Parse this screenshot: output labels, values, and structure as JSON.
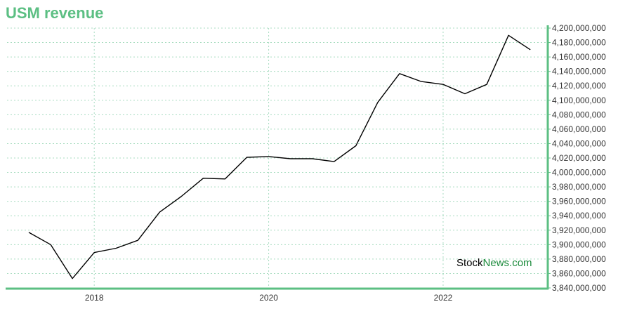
{
  "colors": {
    "title": "#5cbf83",
    "axis": "#5cbf83",
    "grid": "#a8dcc0",
    "line": "#000000",
    "tick_text": "#333333",
    "watermark_stock": "#000000",
    "watermark_news": "#1a8a3a"
  },
  "watermark": {
    "part1": "Stock",
    "part2": "News",
    "part3": ".com"
  },
  "chart_data": {
    "type": "line",
    "title": "USM revenue",
    "xlabel": "",
    "ylabel": "",
    "grid": true,
    "y_axis_side": "right",
    "xlim": [
      2017.0,
      2023.2
    ],
    "ylim": [
      3840000000,
      4200000000
    ],
    "y_ticks": [
      3840000000,
      3860000000,
      3880000000,
      3900000000,
      3920000000,
      3940000000,
      3960000000,
      3980000000,
      4000000000,
      4020000000,
      4040000000,
      4060000000,
      4080000000,
      4100000000,
      4120000000,
      4140000000,
      4160000000,
      4180000000,
      4200000000
    ],
    "y_tick_labels": [
      "3,840,000,000",
      "3,860,000,000",
      "3,880,000,000",
      "3,900,000,000",
      "3,920,000,000",
      "3,940,000,000",
      "3,960,000,000",
      "3,980,000,000",
      "4,000,000,000",
      "4,020,000,000",
      "4,040,000,000",
      "4,060,000,000",
      "4,080,000,000",
      "4,100,000,000",
      "4,120,000,000",
      "4,140,000,000",
      "4,160,000,000",
      "4,180,000,000",
      "4,200,000,000"
    ],
    "x_ticks": [
      2018,
      2020,
      2022
    ],
    "x_tick_labels": [
      "2018",
      "2020",
      "2022"
    ],
    "series": [
      {
        "x": [
          2017.25,
          2017.5,
          2017.75,
          2018.0,
          2018.25,
          2018.5,
          2018.75,
          2019.0,
          2019.25,
          2019.5,
          2019.75,
          2020.0,
          2020.25,
          2020.5,
          2020.75,
          2021.0,
          2021.25,
          2021.5,
          2021.75,
          2022.0,
          2022.25,
          2022.5,
          2022.75,
          2023.0
        ],
        "values": [
          3917000000,
          3900000000,
          3853000000,
          3889000000,
          3895000000,
          3906000000,
          3945000000,
          3967000000,
          3992000000,
          3991000000,
          4021000000,
          4022000000,
          4019000000,
          4019000000,
          4015000000,
          4037000000,
          4097000000,
          4137000000,
          4126000000,
          4122000000,
          4109000000,
          4122000000,
          4190000000,
          4170000000
        ]
      }
    ]
  }
}
